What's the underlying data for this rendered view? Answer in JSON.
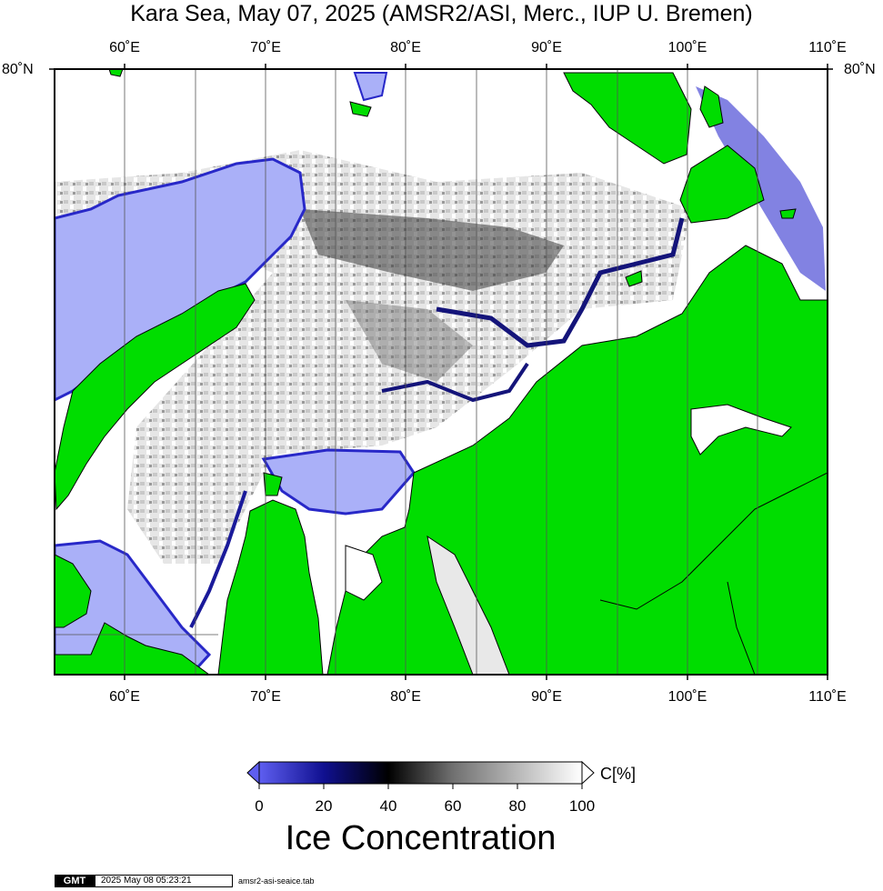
{
  "title": "Kara Sea, May 07, 2025 (AMSR2/ASI, Merc., IUP U. Bremen)",
  "map": {
    "lon_ticks": [
      "60˚E",
      "70˚E",
      "80˚E",
      "90˚E",
      "100˚E",
      "110˚E"
    ],
    "lat_tick": "80˚N",
    "land_color": "#00dd00",
    "open_water_color": "#aab0f8"
  },
  "colorbar": {
    "tick_labels": [
      "0",
      "20",
      "40",
      "60",
      "80",
      "100"
    ],
    "unit": "C[%]",
    "title": "Ice Concentration",
    "stops": [
      "#5e5ef0",
      "#101090",
      "#000000",
      "#707070",
      "#b8b8b8",
      "#ffffff"
    ]
  },
  "footer": {
    "logo": "GMT",
    "timestamp": "2025 May 08 05:23:21",
    "source": "amsr2-asi-seaice.tab"
  }
}
